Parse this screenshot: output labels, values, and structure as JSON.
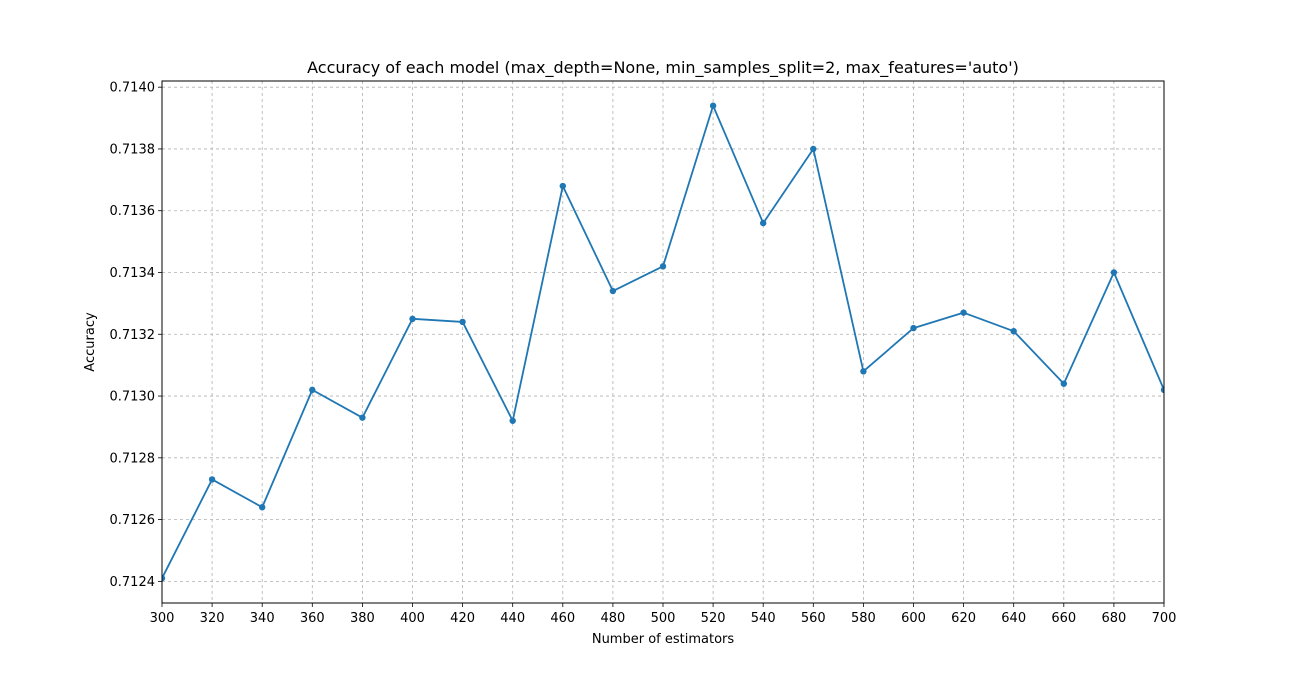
{
  "chart_data": {
    "type": "line",
    "title": "Accuracy of each model (max_depth=None, min_samples_split=2, max_features='auto')",
    "xlabel": "Number of estimators",
    "ylabel": "Accuracy",
    "xlim": [
      300,
      700
    ],
    "ylim": [
      0.71233,
      0.71402
    ],
    "xticks": [
      300,
      320,
      340,
      360,
      380,
      400,
      420,
      440,
      460,
      480,
      500,
      520,
      540,
      560,
      580,
      600,
      620,
      640,
      660,
      680,
      700
    ],
    "yticks": [
      0.7124,
      0.7126,
      0.7128,
      0.713,
      0.7132,
      0.7134,
      0.7136,
      0.7138,
      0.714
    ],
    "ytick_labels": [
      "0.7124",
      "0.7126",
      "0.7128",
      "0.7130",
      "0.7132",
      "0.7134",
      "0.7136",
      "0.7138",
      "0.7140"
    ],
    "grid": true,
    "series": [
      {
        "color": "#1f77b4",
        "marker": "circle",
        "x": [
          300,
          320,
          340,
          360,
          380,
          400,
          420,
          440,
          460,
          480,
          500,
          520,
          540,
          560,
          580,
          600,
          620,
          640,
          660,
          680,
          700
        ],
        "y": [
          0.71241,
          0.71273,
          0.71264,
          0.71302,
          0.71293,
          0.71325,
          0.71324,
          0.71292,
          0.71368,
          0.71334,
          0.71342,
          0.71394,
          0.71356,
          0.7138,
          0.71308,
          0.71322,
          0.71327,
          0.71321,
          0.71304,
          0.7134,
          0.71302
        ]
      }
    ]
  }
}
